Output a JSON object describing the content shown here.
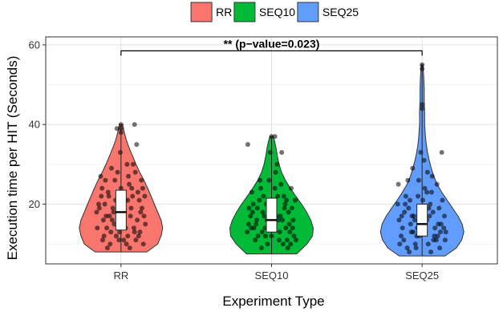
{
  "chart_data": {
    "type": "violin",
    "title": "",
    "xlabel": "Experiment Type",
    "ylabel": "Execution time per HIT (Seconds)",
    "categories": [
      "RR",
      "SEQ10",
      "SEQ25"
    ],
    "y_ticks": [
      20,
      40,
      60
    ],
    "ylim": [
      5,
      62
    ],
    "grid": true,
    "legend": {
      "placement": "top",
      "entries": [
        "RR",
        "SEQ10",
        "SEQ25"
      ]
    },
    "colors": {
      "RR": "#f8766d",
      "SEQ10": "#00ba38",
      "SEQ25": "#619cff"
    },
    "annotation": {
      "text": "** (p−value=0.023)",
      "from": "RR",
      "to": "SEQ25",
      "y": 58.5
    },
    "series": [
      {
        "name": "RR",
        "min": 8,
        "q1": 13.5,
        "median": 18,
        "q3": 23.5,
        "max": 40,
        "density": [
          [
            8,
            0.62
          ],
          [
            10,
            0.88
          ],
          [
            12,
            0.96
          ],
          [
            14,
            1.0
          ],
          [
            16,
            0.96
          ],
          [
            18,
            0.88
          ],
          [
            20,
            0.8
          ],
          [
            22,
            0.72
          ],
          [
            24,
            0.64
          ],
          [
            26,
            0.55
          ],
          [
            28,
            0.45
          ],
          [
            30,
            0.36
          ],
          [
            32,
            0.28
          ],
          [
            34,
            0.2
          ],
          [
            36,
            0.13
          ],
          [
            38,
            0.08
          ],
          [
            40,
            0.04
          ]
        ],
        "points": [
          [
            -0.32,
            19
          ],
          [
            -0.25,
            12
          ],
          [
            -0.18,
            22
          ],
          [
            -0.1,
            15
          ],
          [
            -0.03,
            11
          ],
          [
            0.05,
            18
          ],
          [
            0.12,
            25
          ],
          [
            0.2,
            13
          ],
          [
            0.27,
            21
          ],
          [
            0.34,
            17
          ],
          [
            -0.35,
            14
          ],
          [
            -0.28,
            24
          ],
          [
            -0.2,
            9
          ],
          [
            -0.12,
            19
          ],
          [
            -0.05,
            28
          ],
          [
            0.02,
            16
          ],
          [
            0.1,
            12
          ],
          [
            0.18,
            30
          ],
          [
            0.25,
            23
          ],
          [
            0.33,
            10
          ],
          [
            -0.3,
            27
          ],
          [
            -0.22,
            17
          ],
          [
            -0.15,
            13
          ],
          [
            -0.08,
            21
          ],
          [
            0.0,
            24
          ],
          [
            0.07,
            14
          ],
          [
            0.15,
            19
          ],
          [
            0.22,
            11
          ],
          [
            0.3,
            26
          ],
          [
            0.36,
            15
          ],
          [
            -0.33,
            20
          ],
          [
            -0.26,
            16
          ],
          [
            -0.16,
            10
          ],
          [
            -0.09,
            26
          ],
          [
            -0.02,
            13
          ],
          [
            0.06,
            21
          ],
          [
            0.14,
            17
          ],
          [
            0.21,
            28
          ],
          [
            0.29,
            18
          ],
          [
            0.35,
            22
          ],
          [
            -0.27,
            11
          ],
          [
            -0.19,
            23
          ],
          [
            -0.11,
            18
          ],
          [
            -0.04,
            15
          ],
          [
            0.03,
            20
          ],
          [
            0.11,
            27
          ],
          [
            0.19,
            14
          ],
          [
            0.26,
            12
          ],
          [
            0.32,
            24
          ],
          [
            -0.36,
            18
          ],
          [
            -0.24,
            20
          ],
          [
            -0.13,
            16
          ],
          [
            0.08,
            10
          ],
          [
            0.17,
            22
          ],
          [
            0.24,
            16
          ],
          [
            -0.14,
            29
          ],
          [
            0.09,
            30
          ],
          [
            -0.06,
            39
          ],
          [
            0.0,
            39
          ],
          [
            0.0,
            40
          ],
          [
            0.0,
            38
          ],
          [
            0.2,
            40
          ],
          [
            -0.21,
            14
          ],
          [
            0.13,
            9
          ],
          [
            0.28,
            13
          ],
          [
            -0.07,
            12
          ],
          [
            0.04,
            11
          ],
          [
            -0.17,
            17
          ],
          [
            0.16,
            24
          ],
          [
            -0.29,
            22
          ],
          [
            0.31,
            19
          ],
          [
            -0.01,
            33
          ],
          [
            0.23,
            35
          ],
          [
            -0.23,
            26
          ],
          [
            0.1,
            21
          ]
        ]
      },
      {
        "name": "SEQ10",
        "min": 7.5,
        "q1": 13,
        "median": 16,
        "q3": 21.5,
        "max": 37,
        "density": [
          [
            7.5,
            0.6
          ],
          [
            10,
            0.85
          ],
          [
            12,
            0.98
          ],
          [
            14,
            1.0
          ],
          [
            16,
            0.94
          ],
          [
            18,
            0.84
          ],
          [
            20,
            0.72
          ],
          [
            22,
            0.58
          ],
          [
            24,
            0.45
          ],
          [
            26,
            0.33
          ],
          [
            28,
            0.24
          ],
          [
            30,
            0.18
          ],
          [
            32,
            0.14
          ],
          [
            34,
            0.11
          ],
          [
            36,
            0.07
          ],
          [
            37,
            0.04
          ]
        ],
        "points": [
          [
            -0.34,
            15
          ],
          [
            -0.27,
            20
          ],
          [
            -0.2,
            12
          ],
          [
            -0.13,
            18
          ],
          [
            -0.06,
            10
          ],
          [
            0.02,
            14
          ],
          [
            0.09,
            22
          ],
          [
            0.16,
            16
          ],
          [
            0.23,
            11
          ],
          [
            0.3,
            19
          ],
          [
            -0.36,
            13
          ],
          [
            -0.29,
            23
          ],
          [
            -0.22,
            16
          ],
          [
            -0.15,
            9
          ],
          [
            -0.08,
            20
          ],
          [
            0.0,
            12
          ],
          [
            0.07,
            17
          ],
          [
            0.14,
            25
          ],
          [
            0.21,
            14
          ],
          [
            0.28,
            10
          ],
          [
            0.35,
            21
          ],
          [
            -0.31,
            17
          ],
          [
            -0.24,
            11
          ],
          [
            -0.17,
            26
          ],
          [
            -0.1,
            14
          ],
          [
            -0.03,
            18
          ],
          [
            0.05,
            24
          ],
          [
            0.12,
            13
          ],
          [
            0.19,
            19
          ],
          [
            0.26,
            15
          ],
          [
            0.33,
            12
          ],
          [
            -0.33,
            19
          ],
          [
            -0.26,
            14
          ],
          [
            -0.18,
            21
          ],
          [
            -0.11,
            17
          ],
          [
            -0.04,
            26
          ],
          [
            0.04,
            15
          ],
          [
            0.11,
            11
          ],
          [
            0.18,
            22
          ],
          [
            0.25,
            18
          ],
          [
            0.32,
            16
          ],
          [
            -0.35,
            35
          ],
          [
            -0.21,
            19
          ],
          [
            -0.14,
            13
          ],
          [
            -0.07,
            16
          ],
          [
            0.01,
            20
          ],
          [
            0.08,
            30
          ],
          [
            0.15,
            33
          ],
          [
            0.22,
            21
          ],
          [
            0.29,
            24
          ],
          [
            0.0,
            37
          ],
          [
            0.05,
            37
          ],
          [
            -0.02,
            33
          ],
          [
            0.06,
            28
          ],
          [
            -0.23,
            15
          ],
          [
            0.17,
            10
          ],
          [
            0.27,
            13
          ],
          [
            -0.12,
            22
          ],
          [
            0.13,
            17
          ],
          [
            -0.28,
            18
          ],
          [
            0.31,
            14
          ],
          [
            0.36,
            11
          ],
          [
            -0.09,
            12
          ],
          [
            0.1,
            16
          ],
          [
            -0.16,
            24
          ],
          [
            0.2,
            20
          ],
          [
            -0.3,
            14
          ],
          [
            0.24,
            9
          ],
          [
            -0.05,
            18
          ],
          [
            0.03,
            21
          ]
        ]
      },
      {
        "name": "SEQ25",
        "min": 7,
        "q1": 12,
        "median": 15,
        "q3": 20,
        "max": 55,
        "density": [
          [
            7,
            0.55
          ],
          [
            9,
            0.82
          ],
          [
            11,
            0.95
          ],
          [
            13,
            1.0
          ],
          [
            15,
            0.96
          ],
          [
            17,
            0.86
          ],
          [
            19,
            0.73
          ],
          [
            21,
            0.6
          ],
          [
            23,
            0.47
          ],
          [
            25,
            0.36
          ],
          [
            27,
            0.28
          ],
          [
            29,
            0.22
          ],
          [
            31,
            0.17
          ],
          [
            33,
            0.13
          ],
          [
            35,
            0.1
          ],
          [
            37,
            0.08
          ],
          [
            40,
            0.06
          ],
          [
            43,
            0.06
          ],
          [
            46,
            0.05
          ],
          [
            49,
            0.05
          ],
          [
            52,
            0.04
          ],
          [
            55,
            0.02
          ]
        ],
        "points": [
          [
            -0.34,
            16
          ],
          [
            -0.27,
            11
          ],
          [
            -0.2,
            19
          ],
          [
            -0.13,
            13
          ],
          [
            -0.06,
            22
          ],
          [
            0.02,
            15
          ],
          [
            0.09,
            10
          ],
          [
            0.16,
            18
          ],
          [
            0.23,
            12
          ],
          [
            0.3,
            21
          ],
          [
            -0.36,
            20
          ],
          [
            -0.29,
            14
          ],
          [
            -0.22,
            9
          ],
          [
            -0.15,
            17
          ],
          [
            -0.08,
            12
          ],
          [
            0.0,
            19
          ],
          [
            0.07,
            16
          ],
          [
            0.14,
            23
          ],
          [
            0.21,
            11
          ],
          [
            0.28,
            15
          ],
          [
            0.35,
            13
          ],
          [
            -0.31,
            12
          ],
          [
            -0.24,
            22
          ],
          [
            -0.17,
            15
          ],
          [
            -0.1,
            10
          ],
          [
            -0.03,
            18
          ],
          [
            0.05,
            13
          ],
          [
            0.12,
            20
          ],
          [
            0.19,
            14
          ],
          [
            0.26,
            9
          ],
          [
            0.33,
            17
          ],
          [
            -0.33,
            10
          ],
          [
            -0.26,
            18
          ],
          [
            -0.18,
            21
          ],
          [
            -0.11,
            16
          ],
          [
            -0.04,
            12
          ],
          [
            0.04,
            24
          ],
          [
            0.11,
            17
          ],
          [
            0.18,
            12
          ],
          [
            0.25,
            19
          ],
          [
            0.32,
            14
          ],
          [
            -0.35,
            25
          ],
          [
            -0.21,
            26
          ],
          [
            -0.14,
            29
          ],
          [
            -0.07,
            14
          ],
          [
            0.01,
            21
          ],
          [
            0.08,
            28
          ],
          [
            0.15,
            27
          ],
          [
            0.22,
            25
          ],
          [
            0.29,
            33
          ],
          [
            0.0,
            55
          ],
          [
            0.0,
            54
          ],
          [
            0.0,
            45
          ],
          [
            0.0,
            44
          ],
          [
            -0.02,
            33
          ],
          [
            0.03,
            31
          ],
          [
            -0.05,
            26
          ],
          [
            0.07,
            23
          ],
          [
            -0.25,
            20
          ],
          [
            0.17,
            11
          ],
          [
            -0.09,
            9
          ],
          [
            0.24,
            15
          ],
          [
            -0.3,
            17
          ],
          [
            0.34,
            11
          ],
          [
            0.13,
            8
          ],
          [
            -0.16,
            13
          ],
          [
            0.1,
            19
          ],
          [
            -0.12,
            17
          ],
          [
            0.27,
            13
          ],
          [
            -0.19,
            8
          ]
        ]
      }
    ]
  }
}
